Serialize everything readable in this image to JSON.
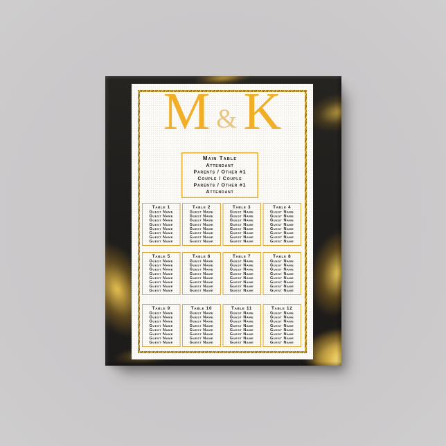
{
  "colors": {
    "background_gray": "#cbc9ca",
    "canvas_black": "#211f1d",
    "gold_agate": "#eec65a",
    "monogram_gold": "#f1ae27",
    "ampersand_gold": "#eac57e",
    "glitter_frame_gold": "#caa53d",
    "card_border_gold": "#e2a934",
    "paper_white": "#fcfbf8",
    "text_black": "#1c1c1c"
  },
  "seating_chart": {
    "monogram": {
      "left_initial": "M",
      "ampersand": "&",
      "right_initial": "K"
    },
    "head_table": {
      "title": "Main Table",
      "lines": [
        "Attendant",
        "Parents / Other #1",
        "Couple / Couple",
        "Parents / Other #1",
        "Attendant"
      ]
    },
    "table_labels": [
      "Table 1",
      "Table 2",
      "Table 3",
      "Table 4",
      "Table 5",
      "Table 6",
      "Table 7",
      "Table 8",
      "Table 9",
      "Table 10",
      "Table 11",
      "Table 12"
    ],
    "guest_placeholder": "Guest Name",
    "guests_per_table": 8
  }
}
